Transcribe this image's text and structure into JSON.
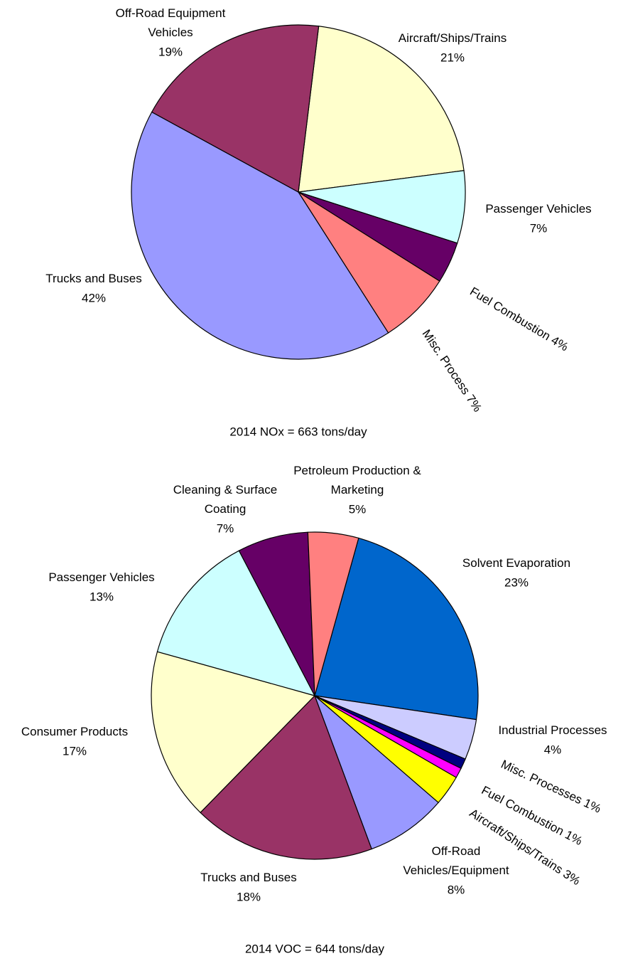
{
  "chart_data": [
    {
      "type": "pie",
      "title": "2014 NOx = 663 tons/day",
      "categories": [
        "Aircraft/Ships/Trains",
        "Passenger Vehicles",
        "Fuel Combustion",
        "Misc. Process",
        "Trucks and Buses",
        "Off-Road Equipment\nVehicles"
      ],
      "values": [
        21,
        7,
        4,
        7,
        42,
        19
      ],
      "value_labels": [
        "21%",
        "7%",
        "4%",
        "7%",
        "42%",
        "19%"
      ],
      "colors": [
        "#ffffcc",
        "#ccffff",
        "#660066",
        "#ff8080",
        "#9999ff",
        "#993366"
      ]
    },
    {
      "type": "pie",
      "title": "2014 VOC = 644 tons/day",
      "categories": [
        "Solvent Evaporation",
        "Industrial Processes",
        "Misc. Processes",
        "Fuel Combustion",
        "Aircraft/Ships/Trains",
        "Off-Road\nVehicles/Equipment",
        "Trucks and Buses",
        "Consumer Products",
        "Passenger Vehicles",
        "Cleaning & Surface\nCoating",
        "Petroleum Production &\nMarketing"
      ],
      "values": [
        23,
        4,
        1,
        1,
        3,
        8,
        18,
        17,
        13,
        7,
        5
      ],
      "value_labels": [
        "23%",
        "4%",
        "1%",
        "1%",
        "3%",
        "8%",
        "18%",
        "17%",
        "13%",
        "7%",
        "5%"
      ],
      "colors": [
        "#0066cc",
        "#ccccff",
        "#000080",
        "#ff00ff",
        "#ffff00",
        "#9999ff",
        "#993366",
        "#ffffcc",
        "#ccffff",
        "#660066",
        "#ff8080"
      ]
    }
  ]
}
